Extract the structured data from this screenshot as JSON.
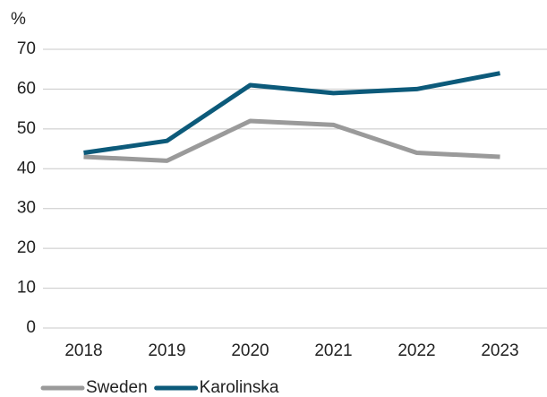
{
  "chart_data": {
    "type": "line",
    "y_label": "%",
    "categories": [
      "2018",
      "2019",
      "2020",
      "2021",
      "2022",
      "2023"
    ],
    "series": [
      {
        "name": "Sweden",
        "color": "#9a9a9a",
        "values": [
          43,
          42,
          52,
          51,
          44,
          43
        ]
      },
      {
        "name": "Karolinska",
        "color": "#0c5a7a",
        "values": [
          44,
          47,
          61,
          59,
          60,
          64
        ]
      }
    ],
    "ylim": [
      0,
      70
    ],
    "yticks": [
      0,
      10,
      20,
      30,
      40,
      50,
      60,
      70
    ],
    "grid": true,
    "legend": "bottom-left"
  }
}
